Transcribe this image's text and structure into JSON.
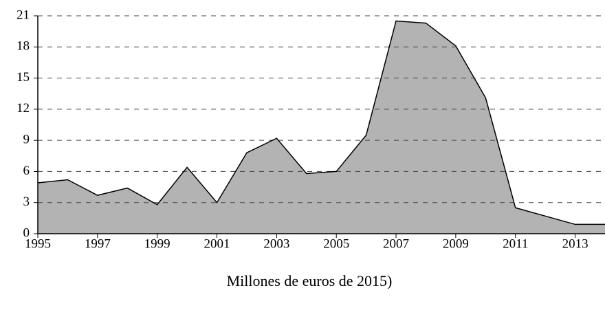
{
  "chart_data": {
    "type": "area",
    "x": [
      1995,
      1996,
      1997,
      1998,
      1999,
      2000,
      2001,
      2002,
      2003,
      2004,
      2005,
      2006,
      2007,
      2008,
      2009,
      2010,
      2011,
      2012,
      2013,
      2014
    ],
    "values": [
      4.9,
      5.2,
      3.7,
      4.4,
      2.8,
      6.4,
      3.0,
      7.8,
      9.2,
      5.8,
      6.0,
      9.5,
      20.5,
      20.3,
      18.1,
      13.1,
      2.5,
      1.7,
      0.9,
      0.9
    ],
    "color": "#b3b3b3",
    "xlabel": "Millones de euros de 2015)",
    "xlim": [
      1995,
      2014
    ],
    "xticks": [
      1995,
      1997,
      1999,
      2001,
      2003,
      2005,
      2007,
      2009,
      2011,
      2013
    ],
    "ylim": [
      0,
      21
    ],
    "yticks": [
      0,
      3,
      6,
      9,
      12,
      15,
      18,
      21
    ],
    "grid": true
  }
}
